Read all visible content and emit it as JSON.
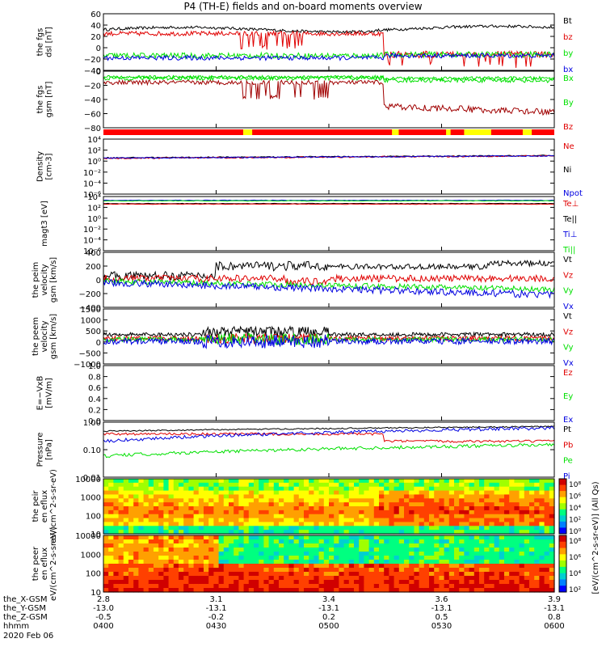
{
  "title": "P4 (TH-E) fields and on-board moments overview",
  "colors": {
    "black": "#000000",
    "red": "#e00000",
    "green": "#00e000",
    "blue": "#0000e0",
    "yellow": "#ffff00"
  },
  "ephemeris": {
    "row_labels": [
      "the_X-GSM",
      "the_Y-GSM",
      "the_Z-GSM",
      "hhmm",
      "2020 Feb 06"
    ],
    "columns": [
      {
        "x": "2.8",
        "y": "-13.0",
        "z": "-0.5",
        "t": "0400"
      },
      {
        "x": "3.1",
        "y": "-13.1",
        "z": "-0.2",
        "t": "0430"
      },
      {
        "x": "3.4",
        "y": "-13.1",
        "z": "0.2",
        "t": "0500"
      },
      {
        "x": "3.6",
        "y": "-13.1",
        "z": "0.5",
        "t": "0530"
      },
      {
        "x": "3.9",
        "y": "-13.1",
        "z": "0.8",
        "t": "0600"
      }
    ]
  },
  "chart_data": [
    {
      "id": "fgs_dsl",
      "type": "line",
      "ylabel": "the fgs dsl [nT]",
      "ylim": [
        -40,
        60
      ],
      "yticks": [
        "60",
        "40",
        "20",
        "0",
        "−20",
        "−40"
      ],
      "legend": [
        {
          "name": "Bt",
          "color": "black"
        },
        {
          "name": "bz",
          "color": "red"
        },
        {
          "name": "by",
          "color": "green"
        },
        {
          "name": "bx",
          "color": "blue"
        }
      ],
      "series": [
        {
          "name": "Bt",
          "approx_value": 38
        },
        {
          "name": "bz",
          "approx_value": 25
        },
        {
          "name": "by",
          "approx_value": -15
        },
        {
          "name": "bx",
          "approx_value": -18
        }
      ]
    },
    {
      "id": "fgs_gsm",
      "type": "line",
      "ylabel": "the fgs gsm [nT]",
      "ylim": [
        -90,
        20
      ],
      "yticks": [
        "0",
        "−20",
        "−40",
        "−60",
        "−80"
      ],
      "legend": [
        {
          "name": "Bx",
          "color": "green"
        },
        {
          "name": "By",
          "color": "green"
        },
        {
          "name": "Bz",
          "color": "red"
        }
      ],
      "series": [
        {
          "name": "Bx",
          "approx_value": 3
        },
        {
          "name": "By",
          "approx_value": 3
        },
        {
          "name": "Bz",
          "approx_value": -60
        }
      ]
    },
    {
      "id": "mode_bar",
      "type": "bar",
      "note": "mode indicator strip (red with yellow segments)"
    },
    {
      "id": "density",
      "type": "line",
      "ylabel": "Density [cm-3]",
      "scale": "log",
      "yticks": [
        "10^4",
        "10^2",
        "10^0",
        "10^-2",
        "10^-4",
        "10^-6"
      ],
      "legend": [
        {
          "name": "Ne",
          "color": "red"
        },
        {
          "name": "Ni",
          "color": "black"
        },
        {
          "name": "Npot",
          "color": "blue"
        }
      ]
    },
    {
      "id": "temp",
      "type": "line",
      "ylabel": "magt3 [eV]",
      "scale": "log",
      "yticks": [
        "10^4",
        "10^2",
        "10^0",
        "10^-2",
        "10^-4",
        "10^-6"
      ],
      "legend": [
        {
          "name": "Te⊥",
          "color": "red"
        },
        {
          "name": "Te||",
          "color": "black"
        },
        {
          "name": "Ti⊥",
          "color": "blue"
        },
        {
          "name": "Ti||",
          "color": "green"
        }
      ]
    },
    {
      "id": "peim_vel",
      "type": "line",
      "ylabel": "the peim velocity gsm [km/s]",
      "ylim": [
        -400,
        400
      ],
      "yticks": [
        "400",
        "200",
        "0",
        "−200",
        "−400"
      ],
      "legend": [
        {
          "name": "Vt",
          "color": "black"
        },
        {
          "name": "Vz",
          "color": "red"
        },
        {
          "name": "Vy",
          "color": "green"
        },
        {
          "name": "Vx",
          "color": "blue"
        }
      ]
    },
    {
      "id": "peem_vel",
      "type": "line",
      "ylabel": "the peem velocity gsm [km/s]",
      "ylim": [
        -1300,
        1500
      ],
      "yticks": [
        "1500",
        "1000",
        "500",
        "0",
        "−500",
        "−1000"
      ],
      "legend": [
        {
          "name": "Vt",
          "color": "black"
        },
        {
          "name": "Vz",
          "color": "red"
        },
        {
          "name": "Vy",
          "color": "green"
        },
        {
          "name": "Vx",
          "color": "blue"
        }
      ]
    },
    {
      "id": "efield",
      "type": "line",
      "ylabel": "E=−VxB [mV/m]",
      "ylim": [
        0,
        1
      ],
      "yticks": [
        "1.0",
        "0.8",
        "0.6",
        "0.4",
        "0.2",
        "0.0"
      ],
      "legend": [
        {
          "name": "Ez",
          "color": "red"
        },
        {
          "name": "Ey",
          "color": "green"
        },
        {
          "name": "Ex",
          "color": "blue"
        }
      ]
    },
    {
      "id": "pressure",
      "type": "line",
      "ylabel": "Pressure [nPa]",
      "scale": "log",
      "yticks": [
        "1.00",
        "0.10",
        "0.01"
      ],
      "legend": [
        {
          "name": "Pt",
          "color": "black"
        },
        {
          "name": "Pb",
          "color": "red"
        },
        {
          "name": "Pe",
          "color": "green"
        },
        {
          "name": "Pi",
          "color": "blue"
        }
      ]
    },
    {
      "id": "peir_spec",
      "type": "heatmap",
      "ylabel": "the peir en eflux eV/(cm^2-s-sr-eV)",
      "yticks": [
        "10000",
        "1000",
        "100",
        "10"
      ]
    },
    {
      "id": "peer_spec",
      "type": "heatmap",
      "ylabel": "the peer en eflux eV/(cm^2-s-sr-eV)",
      "yticks": [
        "10000",
        "1000",
        "100",
        "10"
      ]
    }
  ],
  "colorbars": [
    {
      "label": "[eV/(cm^2-s-sr-eV)] (All Qs)",
      "ticks": [
        "10^8",
        "10^6",
        "10^4",
        "10^2",
        "10^0"
      ]
    },
    {
      "label": "[eV/(cm^2-s-sr-eV)] (All Qs)",
      "ticks": [
        "10^8",
        "10^6",
        "10^4",
        "10^2"
      ]
    }
  ]
}
